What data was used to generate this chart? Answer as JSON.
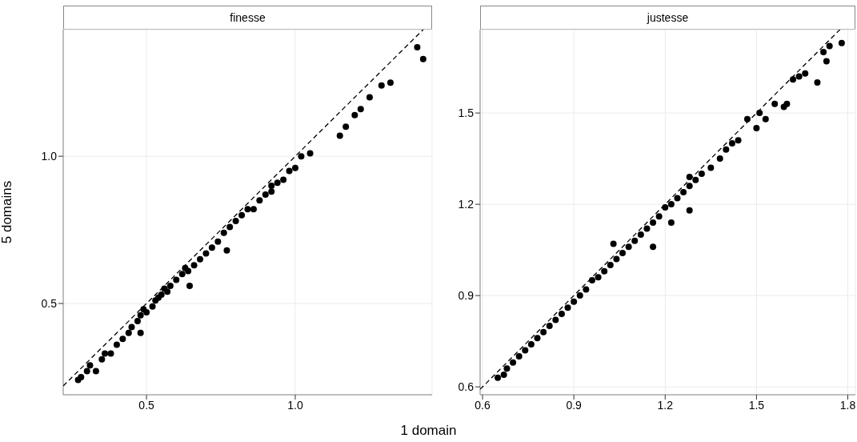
{
  "chart_data": [
    {
      "type": "scatter",
      "title": "finesse",
      "ylabel": "5 domains",
      "xlim": [
        0.22,
        1.46
      ],
      "ylim": [
        0.19,
        1.43
      ],
      "xticks": [
        0.5,
        {
          "value": 1,
          "label": "1.0"
        }
      ],
      "yticks": [
        0.5,
        {
          "value": 1,
          "label": "1.0"
        }
      ],
      "grid": true,
      "series": [
        {
          "marker": "circle",
          "color": "#000000",
          "x": [
            0.27,
            0.28,
            0.3,
            0.31,
            0.33,
            0.35,
            0.36,
            0.38,
            0.4,
            0.42,
            0.44,
            0.45,
            0.47,
            0.48,
            0.48,
            0.49,
            0.5,
            0.52,
            0.53,
            0.54,
            0.55,
            0.56,
            0.57,
            0.58,
            0.6,
            0.62,
            0.63,
            0.645,
            0.64,
            0.66,
            0.68,
            0.7,
            0.72,
            0.74,
            0.76,
            0.77,
            0.78,
            0.8,
            0.82,
            0.84,
            0.86,
            0.88,
            0.9,
            0.92,
            0.92,
            0.94,
            0.96,
            0.98,
            1.0,
            1.02,
            1.05,
            1.15,
            1.17,
            1.2,
            1.22,
            1.25,
            1.29,
            1.32,
            1.41,
            1.43
          ],
          "values": [
            0.24,
            0.25,
            0.27,
            0.29,
            0.27,
            0.31,
            0.33,
            0.33,
            0.36,
            0.38,
            0.4,
            0.42,
            0.44,
            0.46,
            0.4,
            0.48,
            0.47,
            0.49,
            0.51,
            0.52,
            0.53,
            0.55,
            0.54,
            0.56,
            0.58,
            0.6,
            0.62,
            0.56,
            0.61,
            0.63,
            0.65,
            0.67,
            0.69,
            0.71,
            0.74,
            0.68,
            0.76,
            0.78,
            0.8,
            0.82,
            0.82,
            0.85,
            0.87,
            0.88,
            0.9,
            0.91,
            0.92,
            0.95,
            0.96,
            1.0,
            1.01,
            1.07,
            1.1,
            1.14,
            1.16,
            1.2,
            1.24,
            1.25,
            1.37,
            1.33
          ]
        },
        {
          "type": "line",
          "marker": "none",
          "color": "#000000",
          "line_style": "dashed",
          "x": [
            0.22,
            1.43
          ],
          "values": [
            0.22,
            1.43
          ]
        }
      ]
    },
    {
      "type": "scatter",
      "title": "justesse",
      "xlabel": "1 domain",
      "xlim": [
        0.592,
        1.825
      ],
      "ylim": [
        0.574,
        1.774
      ],
      "xticks": [
        0.6,
        0.9,
        1.2,
        1.5,
        1.8
      ],
      "yticks": [
        0.6,
        0.9,
        1.2,
        1.5
      ],
      "grid": true,
      "series": [
        {
          "marker": "circle",
          "color": "#000000",
          "x": [
            0.65,
            0.67,
            0.68,
            0.7,
            0.72,
            0.74,
            0.76,
            0.78,
            0.8,
            0.82,
            0.84,
            0.86,
            0.88,
            0.9,
            0.92,
            0.94,
            0.96,
            0.98,
            1.0,
            1.02,
            1.03,
            1.04,
            1.06,
            1.08,
            1.1,
            1.12,
            1.14,
            1.16,
            1.16,
            1.18,
            1.2,
            1.22,
            1.22,
            1.24,
            1.26,
            1.28,
            1.28,
            1.28,
            1.3,
            1.32,
            1.35,
            1.38,
            1.4,
            1.42,
            1.44,
            1.47,
            1.5,
            1.51,
            1.53,
            1.56,
            1.59,
            1.6,
            1.62,
            1.64,
            1.66,
            1.7,
            1.72,
            1.73,
            1.74,
            1.78
          ],
          "values": [
            0.63,
            0.64,
            0.66,
            0.68,
            0.7,
            0.72,
            0.74,
            0.76,
            0.78,
            0.8,
            0.82,
            0.84,
            0.86,
            0.88,
            0.9,
            0.92,
            0.95,
            0.96,
            0.98,
            1.0,
            1.07,
            1.02,
            1.04,
            1.06,
            1.08,
            1.1,
            1.12,
            1.14,
            1.06,
            1.16,
            1.19,
            1.2,
            1.14,
            1.22,
            1.24,
            1.26,
            1.18,
            1.29,
            1.28,
            1.3,
            1.32,
            1.35,
            1.38,
            1.4,
            1.41,
            1.48,
            1.45,
            1.5,
            1.48,
            1.53,
            1.52,
            1.53,
            1.61,
            1.62,
            1.63,
            1.6,
            1.7,
            1.67,
            1.72,
            1.73
          ]
        },
        {
          "type": "line",
          "marker": "none",
          "color": "#000000",
          "line_style": "dashed",
          "x": [
            0.592,
            1.774
          ],
          "values": [
            0.592,
            1.774
          ]
        }
      ]
    }
  ]
}
